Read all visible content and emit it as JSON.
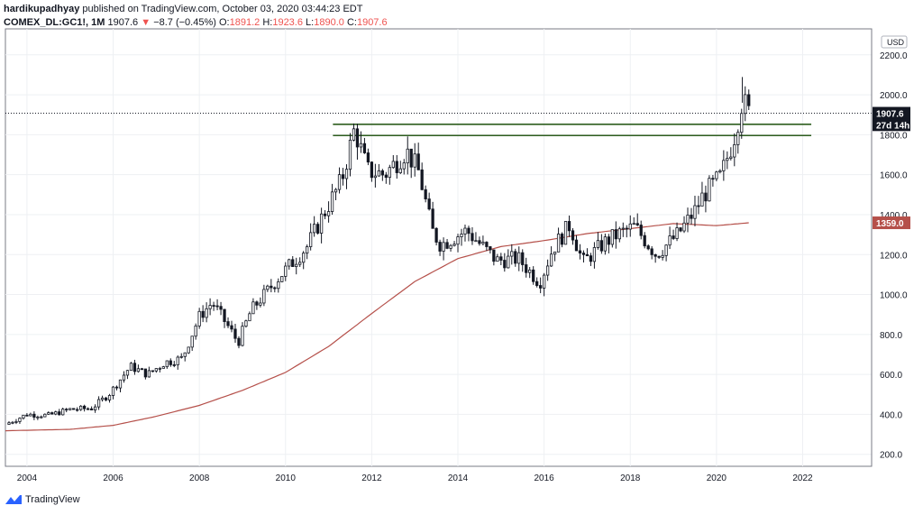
{
  "header": {
    "author": "hardikupadhyay",
    "published": "published on TradingView.com, October 03, 2020 03:44:23 EDT",
    "symbol": "COMEX_DL:GC1!, 1M",
    "last": "1907.6",
    "change_arrow": "▼",
    "change": "−8.7 (−0.45%)",
    "o_label": "O:",
    "o": "1891.2",
    "h_label": "H:",
    "h": "1923.6",
    "l_label": "L:",
    "l": "1890.0",
    "c_label": "C:",
    "c": "1907.6"
  },
  "footer": {
    "brand": "TradingView"
  },
  "colors": {
    "up": "#131722",
    "down": "#131722",
    "ma": "#b5504a",
    "level": "#2e5e1f",
    "grid": "#eef0f3",
    "accent_neg": "#ef5350"
  },
  "chart_data": {
    "type": "candlestick",
    "interval": "1M",
    "currency": "USD",
    "x_ticks": [
      "2004",
      "2006",
      "2008",
      "2010",
      "2012",
      "2014",
      "2016",
      "2018",
      "2020",
      "2022"
    ],
    "y_ticks": [
      "200.0",
      "400.0",
      "600.0",
      "800.0",
      "1000.0",
      "1200.0",
      "1400.0",
      "1600.0",
      "1800.0",
      "2000.0",
      "2200.0"
    ],
    "ylim": [
      140,
      2330
    ],
    "xlim": [
      2003.5,
      2023.6
    ],
    "price_labels": [
      {
        "text": "1907.6",
        "value": 1907.6,
        "style": "dark"
      },
      {
        "text": "27d 14h",
        "value": 1850,
        "style": "dark"
      },
      {
        "text": "1359.0",
        "value": 1359.0,
        "style": "ma"
      }
    ],
    "last_price": 1907.6,
    "horizontal_levels": [
      {
        "value": 1852,
        "x_start": 2011.1,
        "x_end": 2022.2
      },
      {
        "value": 1796,
        "x_start": 2011.1,
        "x_end": 2022.2
      }
    ],
    "close_anchors": [
      [
        2003.5,
        350
      ],
      [
        2004.0,
        400
      ],
      [
        2004.5,
        395
      ],
      [
        2005.0,
        425
      ],
      [
        2005.5,
        430
      ],
      [
        2005.9,
        500
      ],
      [
        2006.4,
        640
      ],
      [
        2006.8,
        600
      ],
      [
        2007.2,
        660
      ],
      [
        2007.6,
        680
      ],
      [
        2008.0,
        890
      ],
      [
        2008.3,
        960
      ],
      [
        2008.7,
        830
      ],
      [
        2008.9,
        760
      ],
      [
        2009.2,
        920
      ],
      [
        2009.9,
        1100
      ],
      [
        2010.5,
        1240
      ],
      [
        2010.9,
        1410
      ],
      [
        2011.3,
        1570
      ],
      [
        2011.6,
        1830
      ],
      [
        2011.9,
        1620
      ],
      [
        2012.3,
        1600
      ],
      [
        2012.8,
        1720
      ],
      [
        2013.1,
        1610
      ],
      [
        2013.4,
        1320
      ],
      [
        2013.6,
        1250
      ],
      [
        2014.2,
        1320
      ],
      [
        2014.9,
        1170
      ],
      [
        2015.4,
        1180
      ],
      [
        2015.9,
        1060
      ],
      [
        2016.2,
        1230
      ],
      [
        2016.6,
        1350
      ],
      [
        2016.9,
        1160
      ],
      [
        2017.4,
        1260
      ],
      [
        2017.7,
        1300
      ],
      [
        2018.1,
        1340
      ],
      [
        2018.6,
        1200
      ],
      [
        2019.1,
        1300
      ],
      [
        2019.5,
        1420
      ],
      [
        2019.7,
        1500
      ],
      [
        2020.1,
        1590
      ],
      [
        2020.4,
        1780
      ],
      [
        2020.6,
        1975
      ],
      [
        2020.75,
        1910
      ]
    ],
    "ma_anchors": [
      [
        2003.5,
        318
      ],
      [
        2005.0,
        325
      ],
      [
        2006.0,
        345
      ],
      [
        2007.0,
        390
      ],
      [
        2008.0,
        445
      ],
      [
        2009.0,
        520
      ],
      [
        2010.0,
        610
      ],
      [
        2011.0,
        740
      ],
      [
        2012.0,
        905
      ],
      [
        2013.0,
        1065
      ],
      [
        2014.0,
        1180
      ],
      [
        2015.0,
        1240
      ],
      [
        2016.0,
        1270
      ],
      [
        2017.0,
        1305
      ],
      [
        2018.0,
        1330
      ],
      [
        2019.0,
        1355
      ],
      [
        2020.0,
        1345
      ],
      [
        2020.75,
        1359
      ]
    ]
  }
}
